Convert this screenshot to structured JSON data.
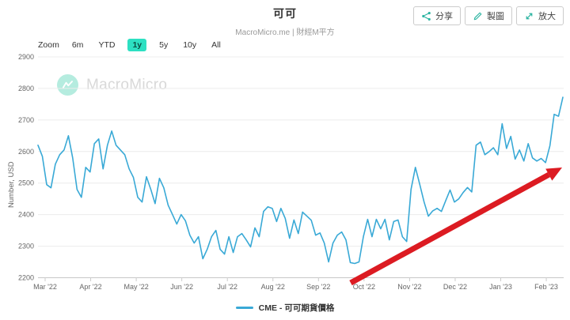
{
  "header": {
    "title": "可可",
    "subtitle": "MacroMicro.me | 財經M平方",
    "buttons": [
      {
        "label": "分享",
        "icon": "share-icon"
      },
      {
        "label": "製圖",
        "icon": "pencil-icon"
      },
      {
        "label": "放大",
        "icon": "expand-icon"
      }
    ]
  },
  "range_bar": {
    "zoom_label": "Zoom",
    "options": [
      "6m",
      "YTD",
      "1y",
      "5y",
      "10y",
      "All"
    ],
    "selected": "1y"
  },
  "watermark": {
    "brand": "MacroMicro"
  },
  "legend": {
    "series_label": "CME - 可可期貨價格"
  },
  "colors": {
    "line": "#39a9d6",
    "icon_teal": "#2ab3a0",
    "selected_range_bg": "#2de0c2",
    "arrow_red": "#dc1b22",
    "watermark_mint": "#b5ecdf"
  },
  "chart_data": {
    "type": "line",
    "title": "可可",
    "xlabel": "",
    "ylabel": "Number, USD",
    "ylim": [
      2200,
      2900
    ],
    "grid": "horizontal",
    "legend_position": "bottom",
    "y_ticks": [
      2200,
      2300,
      2400,
      2500,
      2600,
      2700,
      2800,
      2900
    ],
    "x_tick_labels": [
      "Mar '22",
      "Apr '22",
      "May '22",
      "Jun '22",
      "Jul '22",
      "Aug '22",
      "Sep '22",
      "Oct '22",
      "Nov '22",
      "Dec '22",
      "Jan '23",
      "Feb '23"
    ],
    "series": [
      {
        "name": "CME - 可可期貨價格",
        "color": "#39a9d6",
        "x_range": "late Feb 2022 to late Feb 2023, points evenly spaced (~3 days)",
        "values": [
          2620,
          2585,
          2495,
          2485,
          2560,
          2590,
          2605,
          2650,
          2580,
          2480,
          2455,
          2550,
          2535,
          2625,
          2640,
          2545,
          2620,
          2665,
          2620,
          2605,
          2590,
          2545,
          2518,
          2455,
          2440,
          2520,
          2480,
          2435,
          2515,
          2485,
          2430,
          2400,
          2370,
          2400,
          2380,
          2335,
          2310,
          2330,
          2260,
          2290,
          2330,
          2350,
          2290,
          2275,
          2330,
          2280,
          2330,
          2340,
          2320,
          2298,
          2358,
          2330,
          2410,
          2425,
          2420,
          2378,
          2420,
          2388,
          2325,
          2383,
          2340,
          2408,
          2395,
          2382,
          2335,
          2342,
          2310,
          2250,
          2310,
          2335,
          2345,
          2320,
          2248,
          2245,
          2250,
          2330,
          2385,
          2330,
          2385,
          2355,
          2385,
          2320,
          2378,
          2383,
          2330,
          2315,
          2480,
          2550,
          2496,
          2440,
          2395,
          2412,
          2420,
          2410,
          2445,
          2478,
          2440,
          2450,
          2470,
          2486,
          2472,
          2620,
          2630,
          2590,
          2600,
          2612,
          2590,
          2688,
          2610,
          2648,
          2576,
          2605,
          2570,
          2625,
          2580,
          2570,
          2578,
          2565,
          2618,
          2718,
          2712,
          2772
        ]
      }
    ],
    "annotation": {
      "type": "arrow",
      "color": "#dc1b22",
      "description": "thick red upward trend arrow from the Oct '22 low on the x-axis to the Feb '23 price level"
    }
  }
}
